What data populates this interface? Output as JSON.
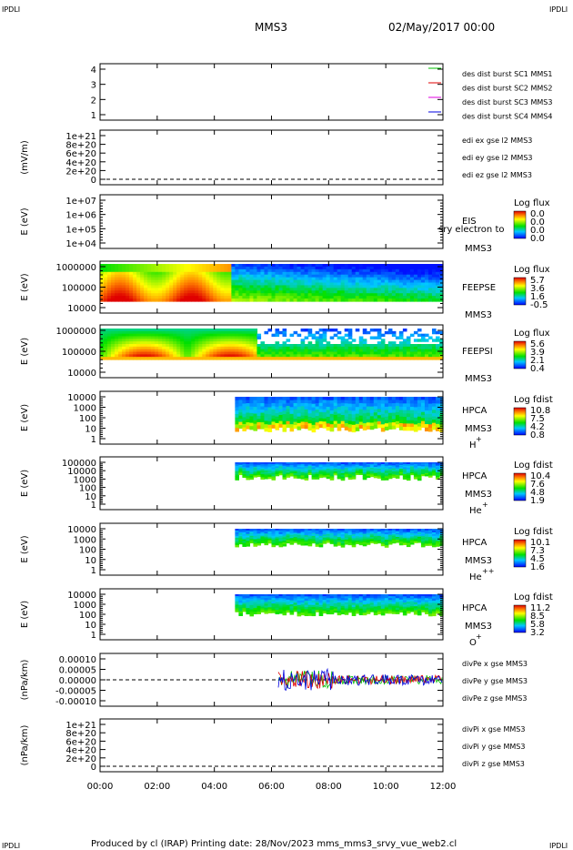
{
  "corner": {
    "left": "IPDLI",
    "right": "IPDLI"
  },
  "header": {
    "spacecraft": "MMS3",
    "datetime": "02/May/2017 00:00"
  },
  "footer": "Produced by cl (IRAP)   Printing date: 28/Nov/2023   mms_mms3_srvy_vue_web2.cl",
  "colors": {
    "red": "#e00000",
    "green": "#00c000",
    "blue": "#0000e0",
    "magenta": "#e000e0",
    "dark_blue": "#0000a0"
  },
  "chart_data": {
    "type": "line",
    "xaxis": {
      "ticks": [
        "00:00",
        "02:00",
        "04:00",
        "06:00",
        "08:00",
        "10:00",
        "12:00"
      ]
    },
    "panels": [
      {
        "id": "burst",
        "type": "line",
        "ylabel": "",
        "ticks": [
          "4",
          "3",
          "2",
          "1"
        ],
        "legend": [
          {
            "label": "des dist burst SC1 MMS1",
            "color": "#00c000"
          },
          {
            "label": "des dist burst SC2 MMS2",
            "color": "#e000e0"
          },
          {
            "label": "des dist burst SC3 MMS3",
            "color": "#e00000"
          },
          {
            "label": "des dist burst SC4 MMS4",
            "color": "#0000e0"
          }
        ]
      },
      {
        "id": "edi",
        "type": "line",
        "ylabel": "(mV/m)",
        "ticks": [
          "1e+21",
          "8e+20",
          "6e+20",
          "4e+20",
          "2e+20",
          "0"
        ],
        "legend": [
          {
            "label": "edi ex gse l2 MMS3",
            "color": "#e00000"
          },
          {
            "label": "edi ey gse l2 MMS3",
            "color": "#00c000"
          },
          {
            "label": "edi ez gse l2 MMS3",
            "color": "#0000e0"
          }
        ]
      },
      {
        "id": "eis",
        "type": "heatmap",
        "ylabel": "E (eV)",
        "ticks": [
          "1e+07",
          "1e+06",
          "1e+05",
          "1e+04"
        ],
        "instrument": "EIS",
        "subtitle": "MMS3",
        "overlay": "sry electron to",
        "cbar_title": "Log flux",
        "cbar_ticks": [
          "0.0",
          "0.0",
          "0.0",
          "0.0"
        ]
      },
      {
        "id": "feepse",
        "type": "heatmap",
        "ylabel": "E (eV)",
        "ticks": [
          "1000000",
          "100000",
          "10000"
        ],
        "instrument": "FEEPSE",
        "subtitle": "MMS3",
        "cbar_title": "Log flux",
        "cbar_ticks": [
          "5.7",
          "3.6",
          "1.6",
          "-0.5"
        ]
      },
      {
        "id": "feepsi",
        "type": "heatmap",
        "ylabel": "E (eV)",
        "ticks": [
          "1000000",
          "100000",
          "10000"
        ],
        "instrument": "FEEPSI",
        "subtitle": "MMS3",
        "cbar_title": "Log flux",
        "cbar_ticks": [
          "5.6",
          "3.9",
          "2.1",
          "0.4"
        ]
      },
      {
        "id": "hpca_h",
        "type": "heatmap",
        "ylabel": "E (eV)",
        "ticks": [
          "10000",
          "1000",
          "100",
          "10",
          "1"
        ],
        "instrument": "HPCA",
        "subtitle": "MMS3",
        "species": "H",
        "charge": "+",
        "cbar_title": "Log fdist",
        "cbar_ticks": [
          "10.8",
          "7.5",
          "4.2",
          "0.8"
        ]
      },
      {
        "id": "hpca_he",
        "type": "heatmap",
        "ylabel": "E (eV)",
        "ticks": [
          "100000",
          "10000",
          "1000",
          "100",
          "10",
          "1"
        ],
        "instrument": "HPCA",
        "subtitle": "MMS3",
        "species": "He",
        "charge": "+",
        "cbar_title": "Log fdist",
        "cbar_ticks": [
          "10.4",
          "7.6",
          "4.8",
          "1.9"
        ]
      },
      {
        "id": "hpca_hepp",
        "type": "heatmap",
        "ylabel": "E (eV)",
        "ticks": [
          "10000",
          "1000",
          "100",
          "10",
          "1"
        ],
        "instrument": "HPCA",
        "subtitle": "MMS3",
        "species": "He",
        "charge": "++",
        "cbar_title": "Log fdist",
        "cbar_ticks": [
          "10.1",
          "7.3",
          "4.5",
          "1.6"
        ]
      },
      {
        "id": "hpca_o",
        "type": "heatmap",
        "ylabel": "E (eV)",
        "ticks": [
          "10000",
          "1000",
          "100",
          "10",
          "1"
        ],
        "instrument": "HPCA",
        "subtitle": "MMS3",
        "species": "O",
        "charge": "+",
        "cbar_title": "Log fdist",
        "cbar_ticks": [
          "11.2",
          "8.5",
          "5.8",
          "3.2"
        ]
      },
      {
        "id": "divpe",
        "type": "line",
        "ylabel": "(nPa/km)",
        "ticks": [
          "0.00010",
          "0.00005",
          "0.00000",
          "-0.00005",
          "-0.00010"
        ],
        "legend": [
          {
            "label": "divPe x gse MMS3",
            "color": "#e00000"
          },
          {
            "label": "divPe y gse MMS3",
            "color": "#00c000"
          },
          {
            "label": "divPe z gse MMS3",
            "color": "#0000e0"
          }
        ]
      },
      {
        "id": "divpi",
        "type": "line",
        "ylabel": "(nPa/km)",
        "ticks": [
          "1e+21",
          "8e+20",
          "6e+20",
          "4e+20",
          "2e+20",
          "0"
        ],
        "legend": [
          {
            "label": "divPi x gse MMS3",
            "color": "#e00000"
          },
          {
            "label": "divPi y gse MMS3",
            "color": "#00c000"
          },
          {
            "label": "divPi z gse MMS3",
            "color": "#0000e0"
          }
        ]
      }
    ]
  }
}
